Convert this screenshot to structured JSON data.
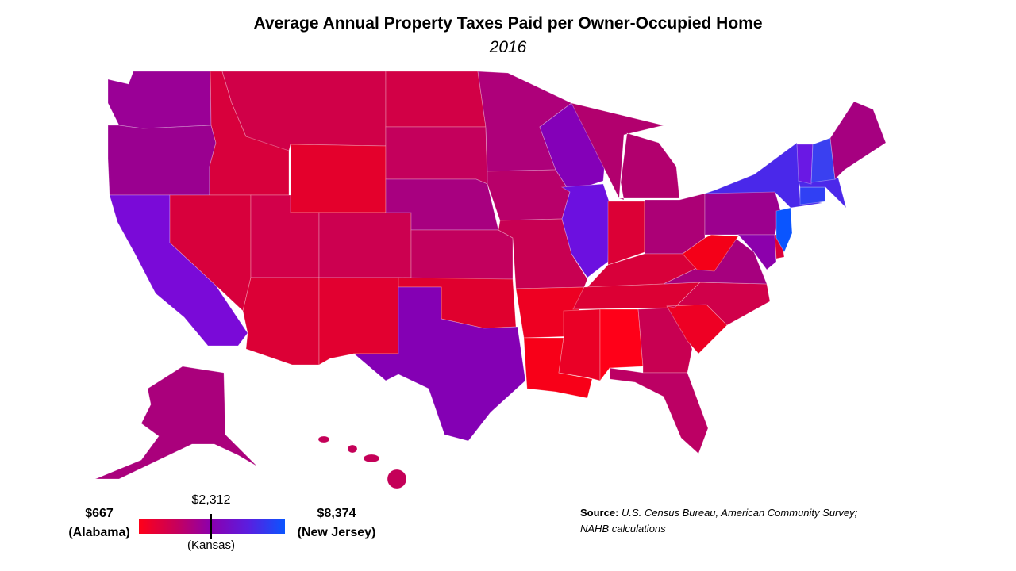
{
  "title": "Average Annual Property Taxes Paid per Owner-Occupied Home",
  "subtitle": "2016",
  "legend": {
    "min_value": "$667",
    "min_state": "(Alabama)",
    "max_value": "$8,374",
    "max_state": "(New Jersey)",
    "marker_value": "$2,312",
    "marker_state": "(Kansas)",
    "color_low": "#ff0018",
    "color_high": "#0a55ff"
  },
  "source": {
    "label": "Source:",
    "text": "U.S. Census Bureau, American Community Survey; NAHB calculations"
  },
  "states": [
    {
      "code": "WA",
      "color": "#9a0096"
    },
    {
      "code": "OR",
      "color": "#9a0090"
    },
    {
      "code": "CA",
      "color": "#7a0ad8"
    },
    {
      "code": "ID",
      "color": "#d8003c"
    },
    {
      "code": "NV",
      "color": "#d8003c"
    },
    {
      "code": "MT",
      "color": "#d00048"
    },
    {
      "code": "WY",
      "color": "#e4002c"
    },
    {
      "code": "UT",
      "color": "#d2004a"
    },
    {
      "code": "AZ",
      "color": "#dc0036"
    },
    {
      "code": "CO",
      "color": "#cc0050"
    },
    {
      "code": "NM",
      "color": "#e20030"
    },
    {
      "code": "ND",
      "color": "#d20046"
    },
    {
      "code": "SD",
      "color": "#c4005c"
    },
    {
      "code": "NE",
      "color": "#a80080"
    },
    {
      "code": "KS",
      "color": "#c2005e"
    },
    {
      "code": "OK",
      "color": "#e0002e"
    },
    {
      "code": "TX",
      "color": "#8400b4"
    },
    {
      "code": "MN",
      "color": "#ae007a"
    },
    {
      "code": "IA",
      "color": "#b8006a"
    },
    {
      "code": "MO",
      "color": "#c80052"
    },
    {
      "code": "AR",
      "color": "#ee0022"
    },
    {
      "code": "LA",
      "color": "#f80018"
    },
    {
      "code": "WI",
      "color": "#8400b8"
    },
    {
      "code": "IL",
      "color": "#6c10e0"
    },
    {
      "code": "MI",
      "color": "#b2006e"
    },
    {
      "code": "IN",
      "color": "#dc0036"
    },
    {
      "code": "OH",
      "color": "#ac0076"
    },
    {
      "code": "KY",
      "color": "#d8003a"
    },
    {
      "code": "TN",
      "color": "#dc0034"
    },
    {
      "code": "MS",
      "color": "#ea0026"
    },
    {
      "code": "AL",
      "color": "#ff0018"
    },
    {
      "code": "GA",
      "color": "#c80052"
    },
    {
      "code": "FL",
      "color": "#bc0064"
    },
    {
      "code": "SC",
      "color": "#ee0024"
    },
    {
      "code": "NC",
      "color": "#d0004a"
    },
    {
      "code": "VA",
      "color": "#a6007e"
    },
    {
      "code": "WV",
      "color": "#f40018"
    },
    {
      "code": "PA",
      "color": "#9c008e"
    },
    {
      "code": "NY",
      "color": "#4a28ea"
    },
    {
      "code": "VT",
      "color": "#6a18e4"
    },
    {
      "code": "NH",
      "color": "#3a40f0"
    },
    {
      "code": "ME",
      "color": "#a60080"
    },
    {
      "code": "MA",
      "color": "#4c28ea"
    },
    {
      "code": "CT",
      "color": "#3040f4"
    },
    {
      "code": "NJ",
      "color": "#0a55ff"
    },
    {
      "code": "DE",
      "color": "#dc0038"
    },
    {
      "code": "MD",
      "color": "#8c00ac"
    },
    {
      "code": "AK",
      "color": "#aa007c"
    },
    {
      "code": "HI",
      "color": "#c40058"
    }
  ]
}
